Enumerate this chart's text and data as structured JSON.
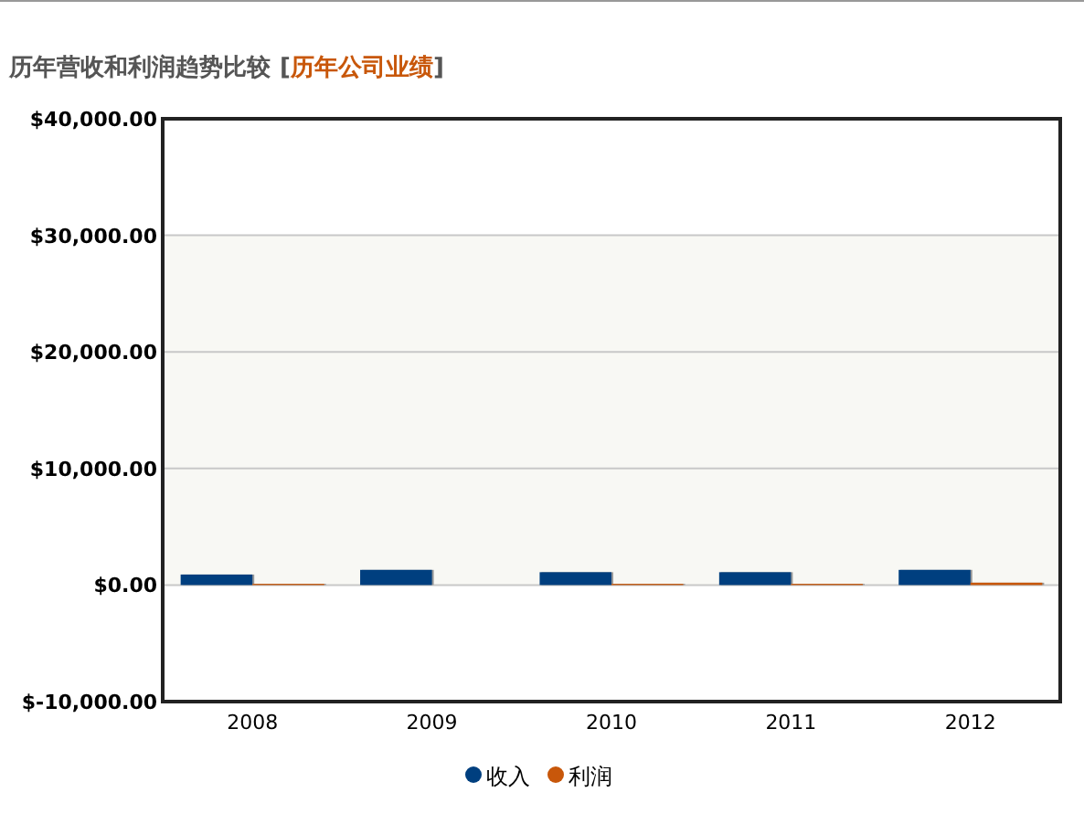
{
  "chart_data": {
    "type": "bar",
    "title": "历年营收和利润趋势比较",
    "subtitle": "[历年公司业绩]",
    "categories": [
      "2008",
      "2009",
      "2010",
      "2011",
      "2012"
    ],
    "series": [
      {
        "name": "收入",
        "color": "#003f7f",
        "values": [
          900,
          1300,
          1100,
          1100,
          1300
        ]
      },
      {
        "name": "利润",
        "color": "#c8570a",
        "values": [
          100,
          0,
          100,
          100,
          200
        ]
      }
    ],
    "ylim": [
      -10000,
      40000
    ],
    "yticks": [
      {
        "value": -10000,
        "label": "$-10,000.00"
      },
      {
        "value": 0,
        "label": "$0.00"
      },
      {
        "value": 10000,
        "label": "$10,000.00"
      },
      {
        "value": 20000,
        "label": "$20,000.00"
      },
      {
        "value": 30000,
        "label": "$30,000.00"
      },
      {
        "value": 40000,
        "label": "$40,000.00"
      }
    ],
    "bands": [
      {
        "axis": "y",
        "from": 0,
        "to": 30000,
        "color": "#f8f8f4"
      }
    ],
    "grid": "y",
    "legend": "bottom"
  }
}
